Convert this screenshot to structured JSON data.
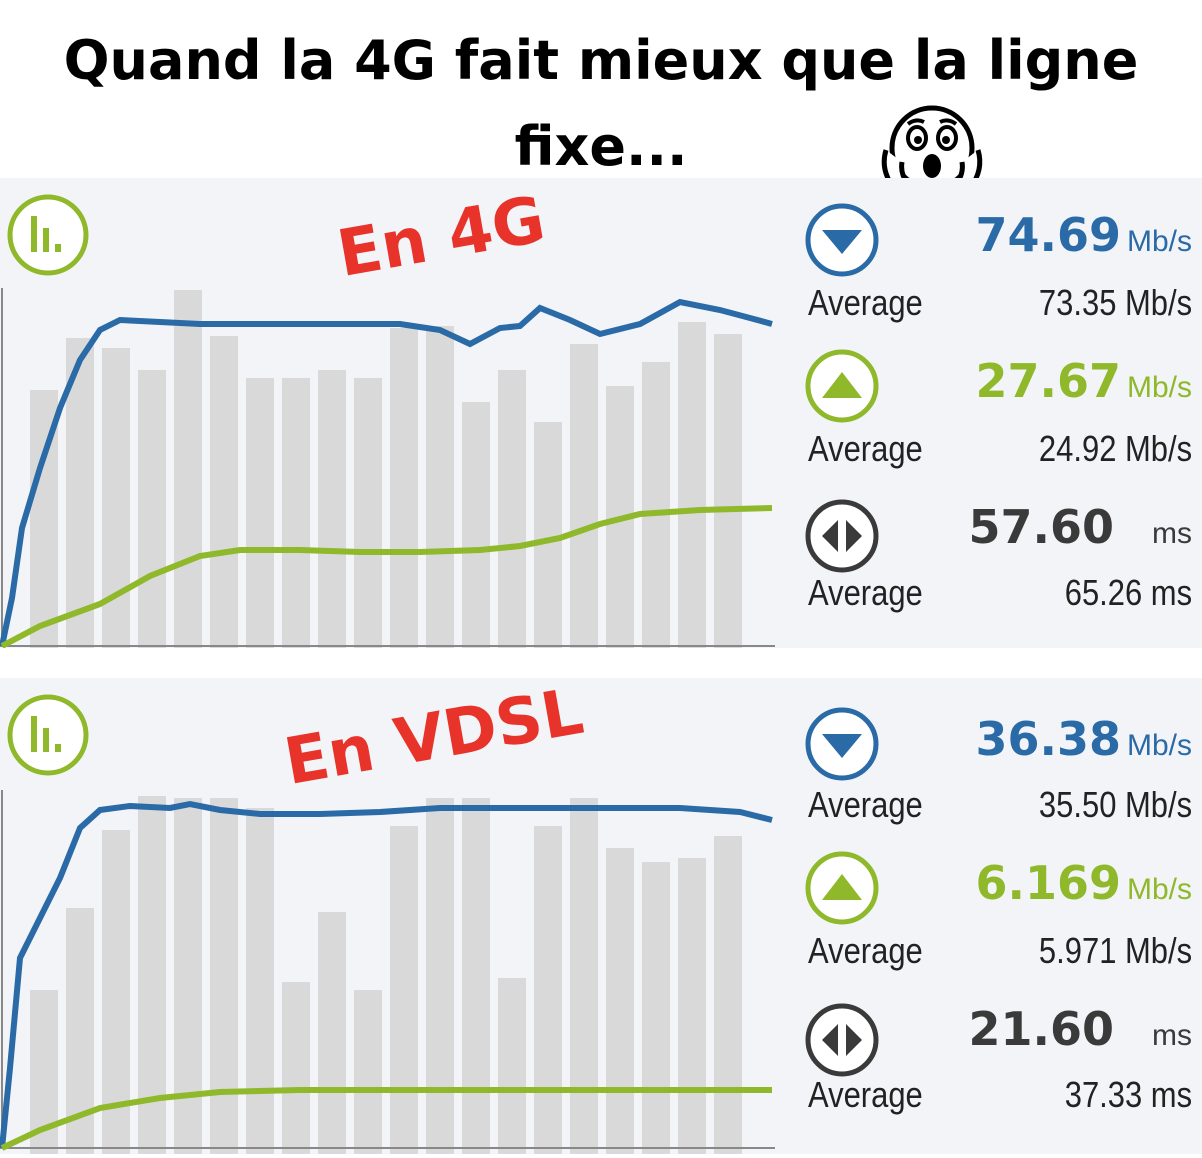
{
  "title": {
    "line1": "Quand la 4G fait mieux que la ligne",
    "line2": "fixe..."
  },
  "emoji": "shocked-face-emoji",
  "colors": {
    "download": "#2a6aa6",
    "upload": "#8fb82a",
    "ping": "#3a3a3a",
    "label": "#e8332a",
    "bars": "#d9d9d9",
    "panel_bg": "#f2f4f7"
  },
  "panels": [
    {
      "label": "En 4G",
      "download": {
        "value": "74.69",
        "unit": "Mb/s",
        "avg_label": "Average",
        "avg_value": "73.35 Mb/s"
      },
      "upload": {
        "value": "27.67",
        "unit": "Mb/s",
        "avg_label": "Average",
        "avg_value": "24.92 Mb/s"
      },
      "ping": {
        "value": "57.60",
        "unit": "ms",
        "avg_label": "Average",
        "avg_value": "65.26 ms"
      }
    },
    {
      "label": "En VDSL",
      "download": {
        "value": "36.38",
        "unit": "Mb/s",
        "avg_label": "Average",
        "avg_value": "35.50 Mb/s"
      },
      "upload": {
        "value": "6.169",
        "unit": "Mb/s",
        "avg_label": "Average",
        "avg_value": "5.971 Mb/s"
      },
      "ping": {
        "value": "21.60",
        "unit": "ms",
        "avg_label": "Average",
        "avg_value": "37.33 ms"
      }
    }
  ]
}
